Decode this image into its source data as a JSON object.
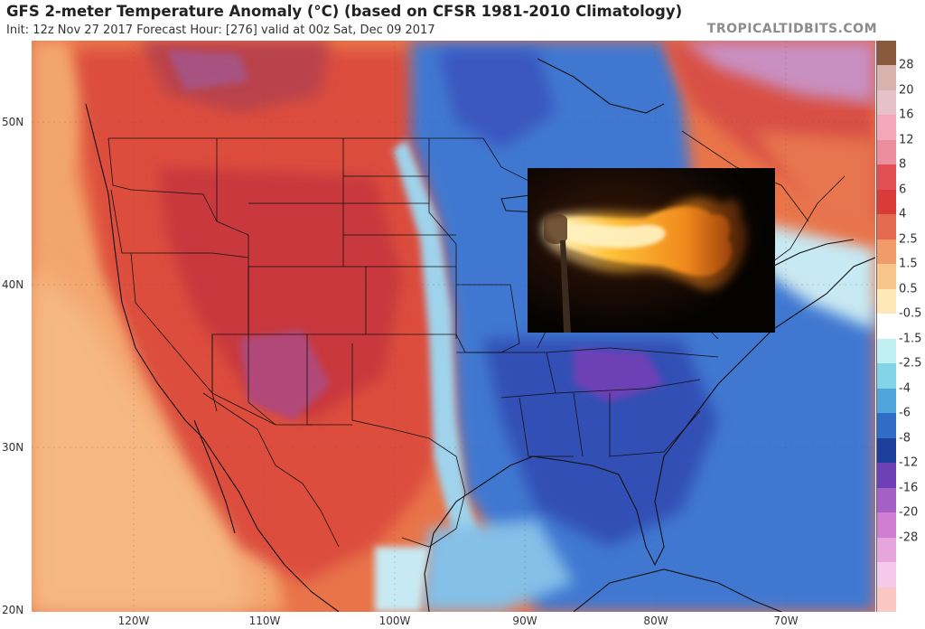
{
  "header": {
    "title": "GFS 2-meter Temperature Anomaly (°C) (based on CFSR 1981-2010 Climatology)",
    "subtitle": "Init: 12z Nov 27 2017   Forecast Hour: [276]   valid at 00z Sat, Dec 09 2017",
    "source": "TROPICALTIDBITS.COM"
  },
  "axes": {
    "latitudes": [
      "50N",
      "40N",
      "30N",
      "20N"
    ],
    "longitudes": [
      "120W",
      "110W",
      "100W",
      "90W",
      "80W",
      "70W"
    ]
  },
  "colorbar": {
    "labels": [
      "28",
      "20",
      "16",
      "12",
      "8",
      "6",
      "4",
      "2.5",
      "1.5",
      "0.5",
      "-0.5",
      "-1.5",
      "-2.5",
      "-4",
      "-6",
      "-8",
      "-12",
      "-16",
      "-20",
      "-28"
    ],
    "colors": [
      "#8a5a3c",
      "#d8b3ae",
      "#e6c1c9",
      "#f3a7b8",
      "#ec8e9e",
      "#e24f54",
      "#d93a3a",
      "#e56a4e",
      "#f19a6a",
      "#f8c58a",
      "#fde9b8",
      "#ffffff",
      "#bfeff0",
      "#82d5e6",
      "#4fa5dc",
      "#2f6dc8",
      "#1c3f9b",
      "#6e40b6",
      "#a460c5",
      "#cf7ed1",
      "#e7a5de",
      "#f4c9ea",
      "#fbc7c3"
    ]
  },
  "map": {
    "palette": {
      "ocean_warm": "#f3a56e",
      "land_warm": "#e35a3e",
      "hot": "#c83a3b",
      "very_hot": "#b04a7a",
      "cold": "#3f78d1",
      "very_cold": "#3350b5",
      "cool": "#84c0e8",
      "borders": "#111111"
    }
  },
  "overlay": {
    "icon": "flaming-torch-photo"
  }
}
